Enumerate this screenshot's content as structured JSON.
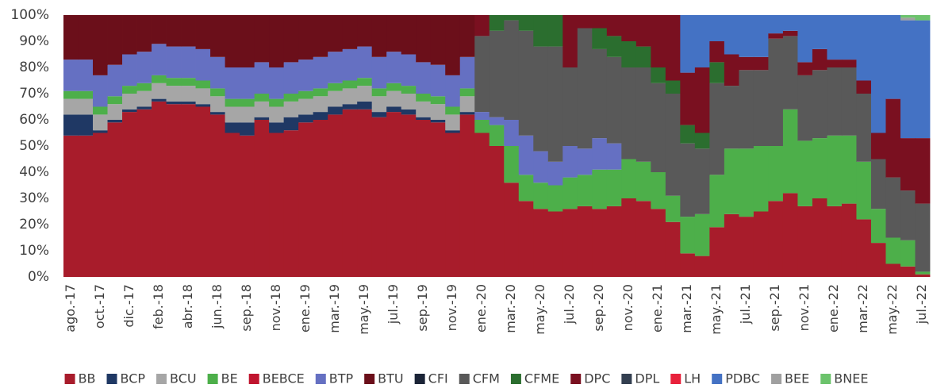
{
  "chart_data": {
    "type": "stacked_bar",
    "categories": [
      "ago.-17",
      null,
      "oct.-17",
      null,
      "dic.-17",
      null,
      "feb.-18",
      null,
      "abr.-18",
      null,
      "jun.-18",
      null,
      "sep.-18",
      null,
      "nov.-18",
      null,
      "ene.-19",
      null,
      "mar.-19",
      null,
      "may.-19",
      null,
      "jul.-19",
      null,
      "sep.-19",
      null,
      "nov.-19",
      null,
      "ene.-20",
      null,
      "mar.-20",
      null,
      "may.-20",
      null,
      "jul.-20",
      null,
      "sep.-20",
      null,
      "nov.-20",
      null,
      "ene.-21",
      null,
      "mar.-21",
      null,
      "may.-21",
      null,
      "jul.-21",
      null,
      "sep.-21",
      null,
      "nov.-21",
      null,
      "ene.-22",
      null,
      "mar.-22",
      null,
      "may.-22",
      null,
      "jul.-22"
    ],
    "ylim": [
      0,
      100
    ],
    "yticks": [
      {
        "value": 0,
        "label": "0%"
      },
      {
        "value": 10,
        "label": "10%"
      },
      {
        "value": 20,
        "label": "20%"
      },
      {
        "value": 30,
        "label": "30%"
      },
      {
        "value": 40,
        "label": "40%"
      },
      {
        "value": 50,
        "label": "50%"
      },
      {
        "value": 60,
        "label": "60%"
      },
      {
        "value": 70,
        "label": "70%"
      },
      {
        "value": 80,
        "label": "80%"
      },
      {
        "value": 90,
        "label": "90%"
      },
      {
        "value": 100,
        "label": "100%"
      }
    ],
    "grid": false,
    "legend": "bottom",
    "series": [
      {
        "name": "BB",
        "color": "#a81c2b",
        "values": [
          54,
          54,
          55,
          59,
          63,
          64,
          67,
          66,
          66,
          65,
          62,
          55,
          54,
          60,
          55,
          56,
          59,
          60,
          62,
          64,
          64,
          61,
          63,
          62,
          60,
          59,
          55,
          62,
          55,
          50,
          36,
          29,
          26,
          25,
          26,
          27,
          26,
          27,
          30,
          29,
          26,
          21,
          9,
          8,
          19,
          24,
          23,
          25,
          29,
          32,
          27,
          30,
          27,
          28,
          22,
          13,
          5,
          4,
          1
        ]
      },
      {
        "name": "BCP",
        "color": "#1f3864",
        "values": [
          8,
          8,
          1,
          1,
          1,
          1,
          1,
          1,
          1,
          1,
          1,
          4,
          5,
          1,
          4,
          5,
          3,
          3,
          3,
          2,
          3,
          2,
          2,
          2,
          1,
          1,
          1,
          1,
          0,
          0,
          0,
          0,
          0,
          0,
          0,
          0,
          0,
          0,
          0,
          0,
          0,
          0,
          0,
          0,
          0,
          0,
          0,
          0,
          0,
          0,
          0,
          0,
          0,
          0,
          0,
          0,
          0,
          0,
          0
        ]
      },
      {
        "name": "BCU",
        "color": "#a6a6a6",
        "values": [
          6,
          6,
          6,
          6,
          6,
          6,
          6,
          6,
          6,
          6,
          6,
          6,
          6,
          6,
          6,
          6,
          6,
          6,
          6,
          6,
          6,
          6,
          6,
          6,
          6,
          6,
          6,
          6,
          0,
          0,
          0,
          0,
          0,
          0,
          0,
          0,
          0,
          0,
          0,
          0,
          0,
          0,
          0,
          0,
          0,
          0,
          0,
          0,
          0,
          0,
          0,
          0,
          0,
          0,
          0,
          0,
          0,
          0,
          0
        ]
      },
      {
        "name": "BE",
        "color": "#4daf4a",
        "values": [
          3,
          3,
          3,
          3,
          3,
          3,
          3,
          3,
          3,
          3,
          3,
          3,
          3,
          3,
          3,
          3,
          3,
          3,
          3,
          3,
          3,
          3,
          3,
          3,
          3,
          3,
          3,
          3,
          5,
          8,
          14,
          10,
          10,
          10,
          12,
          12,
          15,
          14,
          15,
          15,
          14,
          10,
          14,
          16,
          20,
          25,
          26,
          25,
          21,
          32,
          25,
          23,
          27,
          26,
          22,
          13,
          10,
          10,
          1
        ]
      },
      {
        "name": "BEBCE",
        "color": "#c0152f",
        "values": [
          0,
          0,
          0,
          0,
          0,
          0,
          0,
          0,
          0,
          0,
          0,
          0,
          0,
          0,
          0,
          0,
          0,
          0,
          0,
          0,
          0,
          0,
          0,
          0,
          0,
          0,
          0,
          0,
          0,
          0,
          0,
          0,
          0,
          0,
          0,
          0,
          0,
          0,
          0,
          0,
          0,
          0,
          0,
          0,
          0,
          0,
          0,
          0,
          0,
          0,
          0,
          0,
          0,
          0,
          0,
          0,
          0,
          0,
          0
        ]
      },
      {
        "name": "BTP",
        "color": "#6570c2",
        "values": [
          12,
          12,
          12,
          12,
          12,
          12,
          12,
          12,
          12,
          12,
          12,
          12,
          12,
          12,
          12,
          12,
          12,
          12,
          12,
          12,
          12,
          12,
          12,
          12,
          12,
          12,
          12,
          12,
          3,
          3,
          10,
          15,
          12,
          9,
          12,
          10,
          12,
          10,
          0,
          0,
          0,
          0,
          0,
          0,
          0,
          0,
          0,
          0,
          0,
          0,
          0,
          0,
          0,
          0,
          0,
          0,
          0,
          0,
          0
        ]
      },
      {
        "name": "BTU",
        "color": "#6b0f1a",
        "values": [
          17,
          17,
          23,
          19,
          15,
          14,
          11,
          12,
          12,
          13,
          16,
          20,
          20,
          18,
          20,
          18,
          17,
          16,
          14,
          13,
          12,
          16,
          14,
          15,
          18,
          19,
          23,
          16,
          0,
          0,
          0,
          0,
          0,
          0,
          0,
          0,
          0,
          0,
          0,
          0,
          0,
          0,
          0,
          0,
          0,
          0,
          0,
          0,
          0,
          0,
          0,
          0,
          0,
          0,
          0,
          0,
          0,
          0,
          0
        ]
      },
      {
        "name": "CFI",
        "color": "#1b2437",
        "values": [
          0,
          0,
          0,
          0,
          0,
          0,
          0,
          0,
          0,
          0,
          0,
          0,
          0,
          0,
          0,
          0,
          0,
          0,
          0,
          0,
          0,
          0,
          0,
          0,
          0,
          0,
          0,
          0,
          0,
          0,
          0,
          0,
          0,
          0,
          0,
          0,
          0,
          0,
          0,
          0,
          0,
          0,
          0,
          0,
          0,
          0,
          0,
          0,
          0,
          0,
          0,
          0,
          0,
          0,
          0,
          0,
          0,
          0,
          0
        ]
      },
      {
        "name": "CFM",
        "color": "#595959",
        "values": [
          0,
          0,
          0,
          0,
          0,
          0,
          0,
          0,
          0,
          0,
          0,
          0,
          0,
          0,
          0,
          0,
          0,
          0,
          0,
          0,
          0,
          0,
          0,
          0,
          0,
          0,
          0,
          0,
          29,
          33,
          38,
          40,
          40,
          44,
          30,
          46,
          34,
          33,
          35,
          36,
          34,
          39,
          28,
          25,
          35,
          24,
          30,
          29,
          41,
          28,
          25,
          26,
          26,
          26,
          26,
          19,
          23,
          19,
          26
        ]
      },
      {
        "name": "CFME",
        "color": "#2b6e2f",
        "values": [
          0,
          0,
          0,
          0,
          0,
          0,
          0,
          0,
          0,
          0,
          0,
          0,
          0,
          0,
          0,
          0,
          0,
          0,
          0,
          0,
          0,
          0,
          0,
          0,
          0,
          0,
          0,
          0,
          0,
          6,
          2,
          6,
          12,
          12,
          0,
          0,
          8,
          8,
          10,
          8,
          6,
          5,
          7,
          6,
          8,
          0,
          0,
          0,
          0,
          0,
          0,
          0,
          0,
          0,
          0,
          0,
          0,
          0,
          0
        ]
      },
      {
        "name": "DPC",
        "color": "#7a1020",
        "values": [
          0,
          0,
          0,
          0,
          0,
          0,
          0,
          0,
          0,
          0,
          0,
          0,
          0,
          0,
          0,
          0,
          0,
          0,
          0,
          0,
          0,
          0,
          0,
          0,
          0,
          0,
          0,
          0,
          8,
          0,
          0,
          0,
          0,
          0,
          20,
          5,
          5,
          8,
          10,
          12,
          20,
          25,
          20,
          25,
          8,
          12,
          5,
          5,
          2,
          2,
          5,
          8,
          3,
          3,
          5,
          10,
          30,
          20,
          25
        ]
      },
      {
        "name": "DPL",
        "color": "#333f50",
        "values": [
          0,
          0,
          0,
          0,
          0,
          0,
          0,
          0,
          0,
          0,
          0,
          0,
          0,
          0,
          0,
          0,
          0,
          0,
          0,
          0,
          0,
          0,
          0,
          0,
          0,
          0,
          0,
          0,
          0,
          0,
          0,
          0,
          0,
          0,
          0,
          0,
          0,
          0,
          0,
          0,
          0,
          0,
          0,
          0,
          0,
          0,
          0,
          0,
          0,
          0,
          0,
          0,
          0,
          0,
          0,
          0,
          0,
          0,
          0
        ]
      },
      {
        "name": "LH",
        "color": "#e8213b",
        "values": [
          0,
          0,
          0,
          0,
          0,
          0,
          0,
          0,
          0,
          0,
          0,
          0,
          0,
          0,
          0,
          0,
          0,
          0,
          0,
          0,
          0,
          0,
          0,
          0,
          0,
          0,
          0,
          0,
          0,
          0,
          0,
          0,
          0,
          0,
          0,
          0,
          0,
          0,
          0,
          0,
          0,
          0,
          0,
          0,
          0,
          0,
          0,
          0,
          0,
          0,
          0,
          0,
          0,
          0,
          0,
          0,
          0,
          0,
          0
        ]
      },
      {
        "name": "PDBC",
        "color": "#4472c4",
        "values": [
          0,
          0,
          0,
          0,
          0,
          0,
          0,
          0,
          0,
          0,
          0,
          0,
          0,
          0,
          0,
          0,
          0,
          0,
          0,
          0,
          0,
          0,
          0,
          0,
          0,
          0,
          0,
          0,
          0,
          0,
          0,
          0,
          0,
          0,
          0,
          0,
          0,
          0,
          0,
          0,
          0,
          0,
          22,
          20,
          10,
          15,
          16,
          16,
          7,
          6,
          18,
          13,
          17,
          17,
          25,
          45,
          32,
          45,
          45
        ]
      },
      {
        "name": "BEE",
        "color": "#a0a0a0",
        "values": [
          0,
          0,
          0,
          0,
          0,
          0,
          0,
          0,
          0,
          0,
          0,
          0,
          0,
          0,
          0,
          0,
          0,
          0,
          0,
          0,
          0,
          0,
          0,
          0,
          0,
          0,
          0,
          0,
          0,
          0,
          0,
          0,
          0,
          0,
          0,
          0,
          0,
          0,
          0,
          0,
          0,
          0,
          0,
          0,
          0,
          0,
          0,
          0,
          0,
          0,
          0,
          0,
          0,
          0,
          0,
          0,
          0,
          1,
          0
        ]
      },
      {
        "name": "BNEE",
        "color": "#6cc36c",
        "values": [
          0,
          0,
          0,
          0,
          0,
          0,
          0,
          0,
          0,
          0,
          0,
          0,
          0,
          0,
          0,
          0,
          0,
          0,
          0,
          0,
          0,
          0,
          0,
          0,
          0,
          0,
          0,
          0,
          0,
          0,
          0,
          0,
          0,
          0,
          0,
          0,
          0,
          0,
          0,
          0,
          0,
          0,
          0,
          0,
          0,
          0,
          0,
          0,
          0,
          0,
          0,
          0,
          0,
          0,
          0,
          0,
          0,
          1,
          2
        ]
      }
    ]
  }
}
